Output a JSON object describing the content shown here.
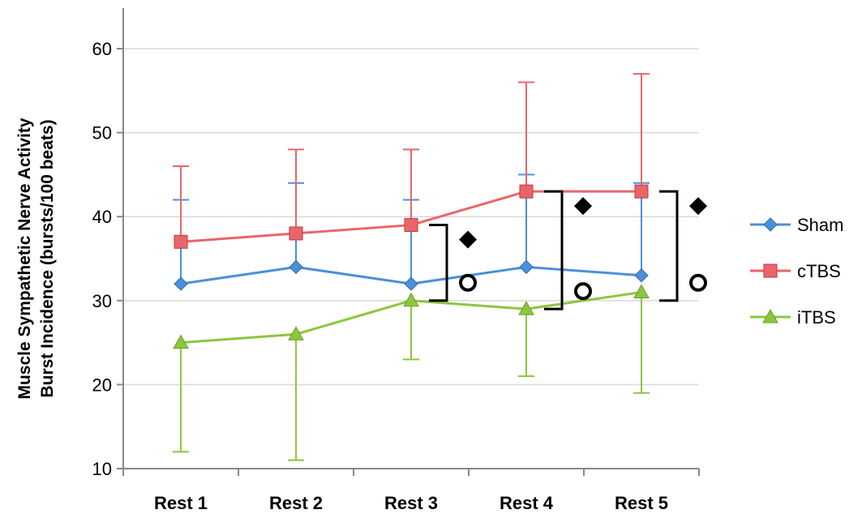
{
  "chart_data": {
    "type": "line",
    "categories": [
      "Rest 1",
      "Rest 2",
      "Rest 3",
      "Rest 4",
      "Rest 5"
    ],
    "ylabel_lines": [
      "Muscle Sympathetic Nerve Activity",
      "Burst Incidence (bursts/100 beats)"
    ],
    "ylim": [
      10,
      60
    ],
    "yticks": [
      10,
      20,
      30,
      40,
      50,
      60
    ],
    "grid": true,
    "legend_position": "right",
    "series": [
      {
        "name": "Sham",
        "color": "#4a90d9",
        "marker": "diamond",
        "values": [
          32,
          34,
          32,
          34,
          33
        ],
        "err_upper": [
          42,
          44,
          42,
          45,
          44
        ],
        "err_lower": [
          null,
          null,
          null,
          null,
          null
        ]
      },
      {
        "name": "cTBS",
        "color": "#e8666a",
        "marker": "square",
        "values": [
          37,
          38,
          39,
          43,
          43
        ],
        "err_upper": [
          46,
          48,
          48,
          56,
          57
        ],
        "err_lower": [
          null,
          null,
          null,
          null,
          null
        ]
      },
      {
        "name": "iTBS",
        "color": "#8cc63e",
        "marker": "triangle",
        "values": [
          25,
          26,
          30,
          29,
          31
        ],
        "err_upper": [
          null,
          null,
          null,
          null,
          null
        ],
        "err_lower": [
          12,
          11,
          23,
          21,
          19
        ]
      }
    ],
    "significance_brackets": [
      {
        "category": "Rest 3",
        "y_top": 39,
        "y_bottom": 30,
        "symbols": [
          "diamond",
          "circle"
        ]
      },
      {
        "category": "Rest 4",
        "y_top": 43,
        "y_bottom": 29,
        "symbols": [
          "diamond",
          "circle"
        ]
      },
      {
        "category": "Rest 5",
        "y_top": 43,
        "y_bottom": 30,
        "symbols": [
          "diamond",
          "circle"
        ]
      }
    ]
  }
}
